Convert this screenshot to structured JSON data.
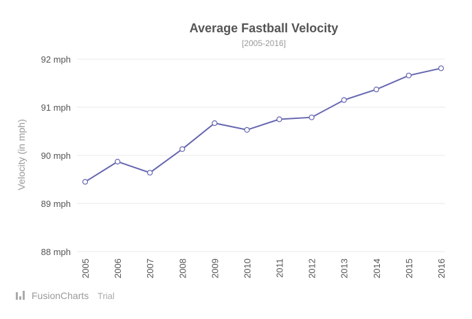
{
  "chart_data": {
    "type": "line",
    "title": "Average Fastball Velocity",
    "subtitle": "[2005-2016]",
    "ylabel": "Velocity (in mph)",
    "xlabel": "",
    "categories": [
      "2005",
      "2006",
      "2007",
      "2008",
      "2009",
      "2010",
      "2011",
      "2012",
      "2013",
      "2014",
      "2015",
      "2016"
    ],
    "values": [
      89.45,
      89.87,
      89.64,
      90.13,
      90.67,
      90.53,
      90.75,
      90.79,
      91.15,
      91.37,
      91.66,
      91.81
    ],
    "ylim": [
      88,
      92
    ],
    "yticks": [
      {
        "value": 88,
        "label": "88 mph"
      },
      {
        "value": 89,
        "label": "89 mph"
      },
      {
        "value": 90,
        "label": "90 mph"
      },
      {
        "value": 91,
        "label": "91 mph"
      },
      {
        "value": 92,
        "label": "92 mph"
      }
    ],
    "grid": true,
    "line_color": "#6566b0"
  },
  "branding": {
    "name": "FusionCharts",
    "suffix": "Trial",
    "logo_icon": "fusioncharts-logo-icon"
  }
}
